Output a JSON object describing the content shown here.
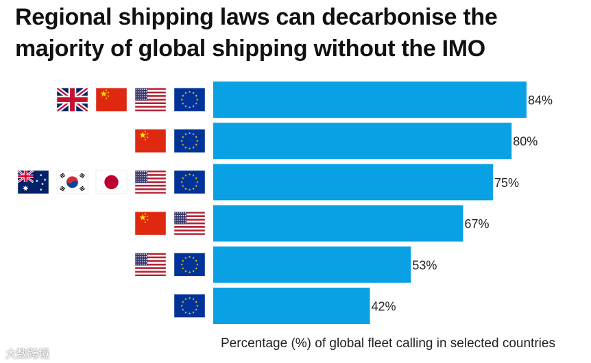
{
  "title_line1": "Regional shipping laws can decarbonise the",
  "title_line2": "majority of global shipping without the IMO",
  "watermark": "大数跨境",
  "chart_data": {
    "type": "bar",
    "orientation": "horizontal",
    "title": "Regional shipping laws can decarbonise the majority of global shipping without the IMO",
    "xlabel": "Percentage (%) of global fleet calling in selected countries",
    "ylabel": "",
    "xlim": [
      0,
      100
    ],
    "grid": false,
    "bar_color": "#0aa0e4",
    "categories": [
      {
        "flags": [
          "uk-flag",
          "china-flag",
          "usa-flag",
          "eu-flag"
        ],
        "value": 84,
        "label": "84%"
      },
      {
        "flags": [
          "china-flag",
          "eu-flag"
        ],
        "value": 80,
        "label": "80%"
      },
      {
        "flags": [
          "australia-flag",
          "south-korea-flag",
          "japan-flag",
          "usa-flag",
          "eu-flag"
        ],
        "value": 75,
        "label": "75%"
      },
      {
        "flags": [
          "china-flag",
          "usa-flag"
        ],
        "value": 67,
        "label": "67%"
      },
      {
        "flags": [
          "usa-flag",
          "eu-flag"
        ],
        "value": 53,
        "label": "53%"
      },
      {
        "flags": [
          "eu-flag"
        ],
        "value": 42,
        "label": "42%"
      }
    ]
  }
}
